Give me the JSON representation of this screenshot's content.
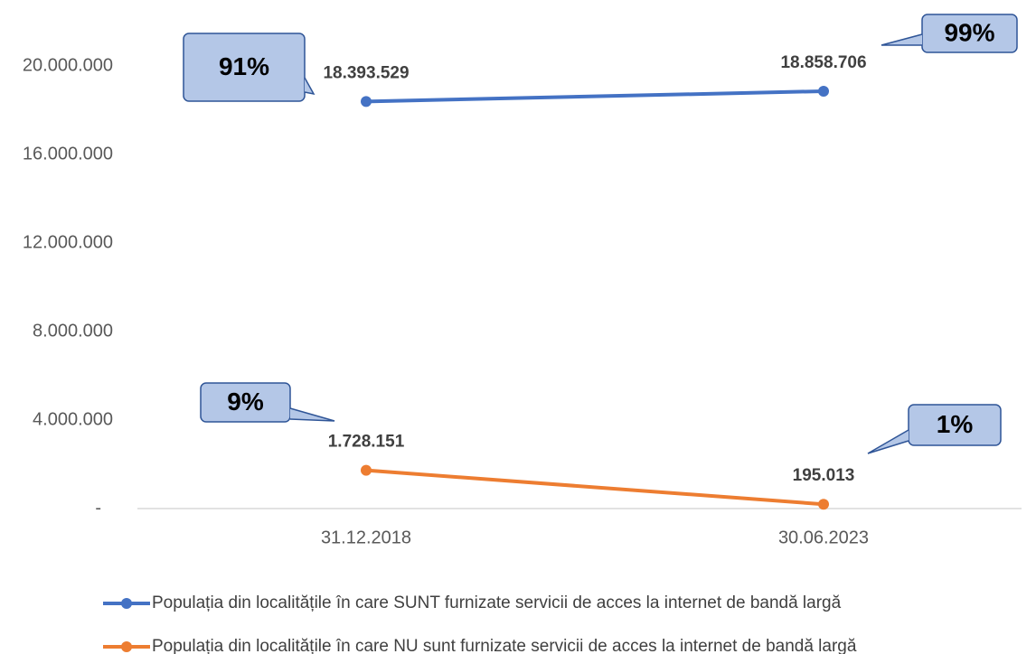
{
  "chart_data": {
    "type": "line",
    "categories": [
      "31.12.2018",
      "30.06.2023"
    ],
    "series": [
      {
        "name": "Populația din localitățile în care SUNT furnizate servicii de acces la internet de bandă largă",
        "color": "#4472c4",
        "values": [
          18393529,
          18858706
        ],
        "value_labels": [
          "18.393.529",
          "18.858.706"
        ]
      },
      {
        "name": "Populația din localitățile în care NU sunt furnizate servicii de acces la internet de bandă largă",
        "color": "#ed7d31",
        "values": [
          1728151,
          195013
        ],
        "value_labels": [
          "1.728.151",
          "195.013"
        ]
      }
    ],
    "annotations": [
      "91%",
      "99%",
      "9%",
      "1%"
    ],
    "ylim": [
      0,
      22000000
    ],
    "yticks": [
      {
        "value": 0,
        "label": "-"
      },
      {
        "value": 4000000,
        "label": "4.000.000"
      },
      {
        "value": 8000000,
        "label": "8.000.000"
      },
      {
        "value": 12000000,
        "label": "12.000.000"
      },
      {
        "value": 16000000,
        "label": "16.000.000"
      },
      {
        "value": 20000000,
        "label": "20.000.000"
      }
    ],
    "grid": false,
    "legend": "bottom"
  }
}
